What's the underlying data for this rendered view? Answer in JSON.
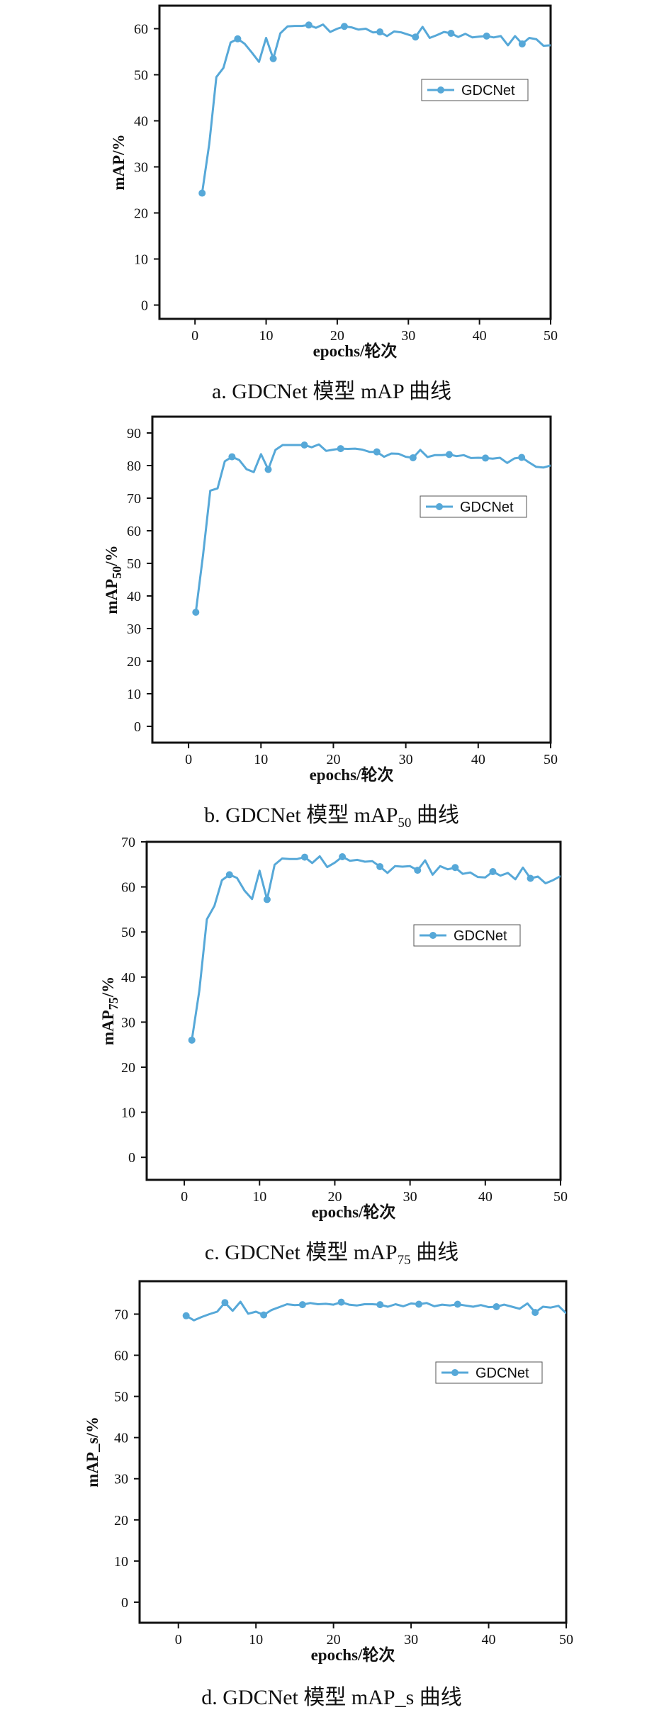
{
  "chart_data": [
    {
      "type": "line",
      "title": "",
      "caption": {
        "text": "a. GDCNet 模型 mAP 曲线",
        "sub": ""
      },
      "xlabel": "epochs/轮次",
      "ylabel": {
        "main": "mAP",
        "sub": "",
        "suffix": "/%"
      },
      "xlim": [
        -5,
        50
      ],
      "ylim": [
        -3,
        65
      ],
      "xticks": [
        0,
        10,
        20,
        30,
        40,
        50
      ],
      "yticks": [
        0,
        10,
        20,
        30,
        40,
        50,
        60
      ],
      "grid": false,
      "legend_position": "right",
      "marker_every": 5,
      "series": [
        {
          "name": "GDCNet",
          "color": "#56a8d8",
          "x": [
            1,
            2,
            3,
            4,
            5,
            6,
            7,
            8,
            9,
            10,
            11,
            12,
            13,
            14,
            15,
            16,
            17,
            18,
            19,
            20,
            21,
            22,
            23,
            24,
            25,
            26,
            27,
            28,
            29,
            30,
            31,
            32,
            33,
            34,
            35,
            36,
            37,
            38,
            39,
            40,
            41,
            42,
            43,
            44,
            45,
            46,
            47,
            48,
            49,
            50
          ],
          "y": [
            24.3,
            35,
            49.5,
            51.5,
            57,
            57.8,
            56.7,
            54.8,
            52.8,
            58,
            53.5,
            59,
            60.5,
            60.6,
            60.6,
            60.8,
            60.2,
            60.9,
            59.3,
            60,
            60.5,
            60.3,
            59.8,
            60,
            59.2,
            59.3,
            58.4,
            59.4,
            59.2,
            58.7,
            58.2,
            60.4,
            58,
            58.6,
            59.3,
            59,
            58.2,
            58.9,
            58.1,
            58.3,
            58.4,
            58.1,
            58.4,
            56.4,
            58.4,
            56.7,
            58,
            57.7,
            56.3,
            56.4
          ]
        }
      ]
    },
    {
      "type": "line",
      "title": "",
      "caption": {
        "text": "b. GDCNet 模型 mAP",
        "sub": "50",
        "after": " 曲线"
      },
      "xlabel": "epochs/轮次",
      "ylabel": {
        "main": "mAP",
        "sub": "50",
        "suffix": "/%"
      },
      "xlim": [
        -5,
        50
      ],
      "ylim": [
        -5,
        95
      ],
      "xticks": [
        0,
        10,
        20,
        30,
        40,
        50
      ],
      "yticks": [
        0,
        10,
        20,
        30,
        40,
        50,
        60,
        70,
        80,
        90
      ],
      "grid": false,
      "legend_position": "right",
      "marker_every": 5,
      "series": [
        {
          "name": "GDCNet",
          "color": "#56a8d8",
          "x": [
            1,
            2,
            3,
            4,
            5,
            6,
            7,
            8,
            9,
            10,
            11,
            12,
            13,
            14,
            15,
            16,
            17,
            18,
            19,
            20,
            21,
            22,
            23,
            24,
            25,
            26,
            27,
            28,
            29,
            30,
            31,
            32,
            33,
            34,
            35,
            36,
            37,
            38,
            39,
            40,
            41,
            42,
            43,
            44,
            45,
            46,
            47,
            48,
            49,
            50
          ],
          "y": [
            35,
            52.5,
            72.3,
            73,
            81.3,
            82.7,
            81.7,
            78.9,
            78,
            83.5,
            78.8,
            84.8,
            86.3,
            86.3,
            86.3,
            86.3,
            85.6,
            86.5,
            84.5,
            84.9,
            85.2,
            85.1,
            85.2,
            84.9,
            84.2,
            84.2,
            82.7,
            83.7,
            83.6,
            82.7,
            82.4,
            84.8,
            82.6,
            83.2,
            83.2,
            83.4,
            82.9,
            83.2,
            82.3,
            82.4,
            82.3,
            82.1,
            82.4,
            80.8,
            82.2,
            82.5,
            81,
            79.6,
            79.4,
            80
          ]
        }
      ]
    },
    {
      "type": "line",
      "title": "",
      "caption": {
        "text": "c. GDCNet 模型 mAP",
        "sub": "75",
        "after": " 曲线"
      },
      "xlabel": "epochs/轮次",
      "ylabel": {
        "main": "mAP",
        "sub": "75",
        "suffix": "/%"
      },
      "xlim": [
        -5,
        50
      ],
      "ylim": [
        -5,
        70
      ],
      "xticks": [
        0,
        10,
        20,
        30,
        40,
        50
      ],
      "yticks": [
        0,
        10,
        20,
        30,
        40,
        50,
        60,
        70
      ],
      "grid": false,
      "legend_position": "right",
      "marker_every": 5,
      "series": [
        {
          "name": "GDCNet",
          "color": "#56a8d8",
          "x": [
            1,
            2,
            3,
            4,
            5,
            6,
            7,
            8,
            9,
            10,
            11,
            12,
            13,
            14,
            15,
            16,
            17,
            18,
            19,
            20,
            21,
            22,
            23,
            24,
            25,
            26,
            27,
            28,
            29,
            30,
            31,
            32,
            33,
            34,
            35,
            36,
            37,
            38,
            39,
            40,
            41,
            42,
            43,
            44,
            45,
            46,
            47,
            48,
            49,
            50
          ],
          "y": [
            26,
            37,
            52.8,
            55.8,
            61.5,
            62.7,
            62,
            59.2,
            57.3,
            63.6,
            57.2,
            64.9,
            66.3,
            66.2,
            66.2,
            66.6,
            65.3,
            66.8,
            64.4,
            65.4,
            66.7,
            65.8,
            66,
            65.6,
            65.7,
            64.5,
            63.1,
            64.6,
            64.5,
            64.6,
            63.7,
            65.9,
            62.7,
            64.6,
            63.9,
            64.3,
            62.9,
            63.2,
            62.2,
            62.1,
            63.4,
            62.5,
            63.1,
            61.7,
            64.3,
            61.9,
            62.3,
            60.8,
            61.5,
            62.4
          ]
        }
      ]
    },
    {
      "type": "line",
      "title": "",
      "caption": {
        "text": "d. GDCNet 模型 mAP_s 曲线",
        "sub": ""
      },
      "xlabel": "epochs/轮次",
      "ylabel": {
        "main": "mAP_s",
        "sub": "",
        "suffix": "/%"
      },
      "xlim": [
        -5,
        50
      ],
      "ylim": [
        -5,
        78
      ],
      "xticks": [
        0,
        10,
        20,
        30,
        40,
        50
      ],
      "yticks": [
        0,
        10,
        20,
        30,
        40,
        50,
        60,
        70
      ],
      "grid": false,
      "legend_position": "right",
      "marker_every": 5,
      "series": [
        {
          "name": "GDCNet",
          "color": "#56a8d8",
          "x": [
            1,
            2,
            3,
            4,
            5,
            6,
            7,
            8,
            9,
            10,
            11,
            12,
            13,
            14,
            15,
            16,
            17,
            18,
            19,
            20,
            21,
            22,
            23,
            24,
            25,
            26,
            27,
            28,
            29,
            30,
            31,
            32,
            33,
            34,
            35,
            36,
            37,
            38,
            39,
            40,
            41,
            42,
            43,
            44,
            45,
            46,
            47,
            48,
            49,
            50
          ],
          "y": [
            69.6,
            68.5,
            69.3,
            70,
            70.6,
            72.8,
            70.8,
            73,
            70.1,
            70.6,
            69.8,
            71,
            71.7,
            72.4,
            72.2,
            72.3,
            72.7,
            72.4,
            72.5,
            72.3,
            72.9,
            72.3,
            72.1,
            72.4,
            72.4,
            72.3,
            71.8,
            72.4,
            71.9,
            72.6,
            72.4,
            72.7,
            71.9,
            72.3,
            72.1,
            72.4,
            72.1,
            71.8,
            72.2,
            71.7,
            71.8,
            72.3,
            71.8,
            71.3,
            72.6,
            70.4,
            71.8,
            71.6,
            72,
            70.2
          ]
        }
      ]
    }
  ]
}
